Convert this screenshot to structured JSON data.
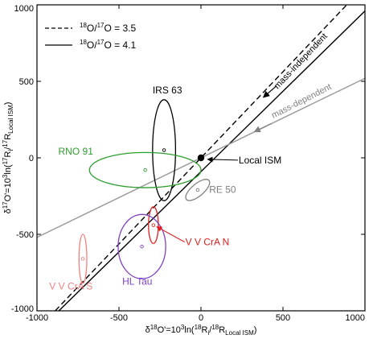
{
  "chart_data": {
    "type": "scatter",
    "xlabel_parts": [
      "δ",
      "18",
      "O'=10",
      "3",
      "ln(",
      "18",
      "R",
      "i",
      "/",
      "18",
      "R",
      "Local ISM",
      ")"
    ],
    "ylabel_parts": [
      "δ",
      "17",
      "O'=10",
      "3",
      "ln(",
      "17",
      "R",
      "i",
      "/",
      "17",
      "R",
      "Local ISM",
      ")"
    ],
    "xlim": [
      -1000,
      1000
    ],
    "ylim": [
      -1000,
      1000
    ],
    "x_ticks": [
      -1000,
      -500,
      0,
      500,
      1000
    ],
    "y_ticks": [
      -1000,
      -500,
      0,
      500,
      1000
    ],
    "x_tick_labels": [
      "-1000",
      "-500",
      "0",
      "500",
      "1000"
    ],
    "y_tick_labels": [
      "-1000",
      "-500",
      "0",
      "500",
      "1000"
    ],
    "legend_placement": "top-left",
    "legend": [
      {
        "sup": "18",
        "mid": "O/",
        "sup2": "17",
        "tail": "O = 3.5",
        "style": "dashed",
        "color": "#000000"
      },
      {
        "sup": "18",
        "mid": "O/",
        "sup2": "17",
        "tail": "O = 4.1",
        "style": "solid",
        "color": "#000000"
      }
    ],
    "lines": [
      {
        "kind": "dashed",
        "color": "#000000",
        "slope": 1.125,
        "intercept": 0
      },
      {
        "kind": "solid",
        "color": "#000000",
        "slope": 1.05,
        "intercept": -90
      },
      {
        "kind": "solid",
        "color": "#999999",
        "slope": 0.52,
        "intercept": 0
      }
    ],
    "annotations": [
      {
        "text": "mass-independent",
        "color": "#000000",
        "x": 620,
        "y": 620,
        "angle_deg": 46.5,
        "arrow_from": [
          460,
          470
        ],
        "arrow_to": [
          380,
          395
        ]
      },
      {
        "text": "mass-dependent",
        "color": "#808080",
        "x": 620,
        "y": 355,
        "angle_deg": 27,
        "arrow_from": [
          430,
          225
        ],
        "arrow_to": [
          325,
          170
        ]
      }
    ],
    "local_ism": {
      "name": "Local ISM",
      "x": 0,
      "y": 0,
      "label_x": 230,
      "label_y": -15,
      "arrow_from": [
        225,
        -15
      ],
      "arrow_to": [
        40,
        -10
      ]
    },
    "sources": [
      {
        "name": "IRS 63",
        "color": "#000000",
        "x": -225,
        "y": 50,
        "rx": 70,
        "ry": 330,
        "label_x": -295,
        "label_y": 420
      },
      {
        "name": "RNO 91",
        "color": "#2e9e2e",
        "x": -340,
        "y": -80,
        "rx": 340,
        "ry": 115,
        "label_x": -870,
        "label_y": 20
      },
      {
        "name": "RE 50",
        "color": "#808080",
        "x": -20,
        "y": -210,
        "rx": 90,
        "ry": 40,
        "angle_deg": 40,
        "label_x": 50,
        "label_y": -230
      },
      {
        "name": "V V CrA N",
        "color": "#e02020",
        "x": -290,
        "y": -440,
        "rx": 30,
        "ry": 120,
        "label_x": -95,
        "label_y": -570,
        "arrow_from": [
          -100,
          -550
        ],
        "arrow_to": [
          -270,
          -450
        ]
      },
      {
        "name": "HL Tau",
        "color": "#8040c0",
        "x": -360,
        "y": -580,
        "rx": 145,
        "ry": 210,
        "label_x": -480,
        "label_y": -830
      },
      {
        "name": "V V CrA S",
        "color": "#f08080",
        "x": -720,
        "y": -660,
        "rx": 24,
        "ry": 160,
        "label_x": -925,
        "label_y": -860
      }
    ]
  }
}
